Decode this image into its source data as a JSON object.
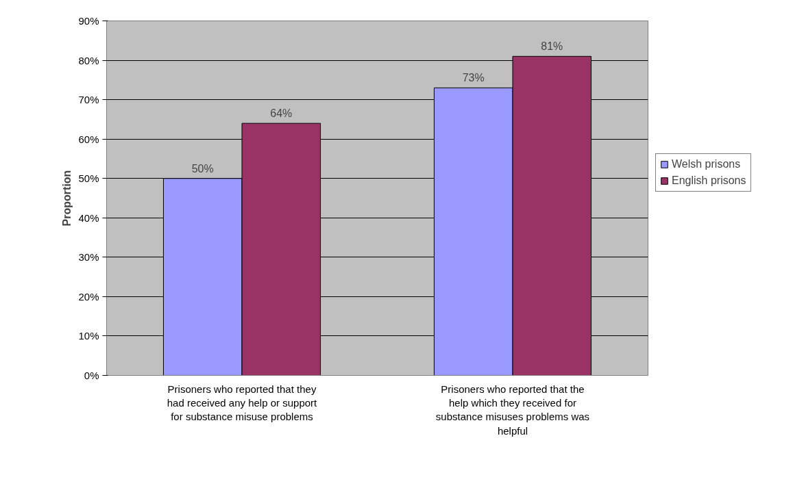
{
  "chart_data": {
    "type": "bar",
    "ylabel": "Proportion",
    "categories": [
      "Prisoners who reported that they had received any help or support for substance misuse problems",
      "Prisoners who reported that the help which they received for substance misuses problems was helpful"
    ],
    "series": [
      {
        "name": "Welsh prisons",
        "color": "#9999ff",
        "values": [
          50,
          73
        ],
        "value_labels": [
          "50%",
          "73%"
        ]
      },
      {
        "name": "English prisons",
        "color": "#993366",
        "values": [
          64,
          81
        ],
        "value_labels": [
          "64%",
          "81%"
        ]
      }
    ],
    "ylim": [
      0,
      90
    ],
    "yticks": [
      {
        "value": 0,
        "label": "0%"
      },
      {
        "value": 10,
        "label": "10%"
      },
      {
        "value": 20,
        "label": "20%"
      },
      {
        "value": 30,
        "label": "30%"
      },
      {
        "value": 40,
        "label": "40%"
      },
      {
        "value": 50,
        "label": "50%"
      },
      {
        "value": 60,
        "label": "60%"
      },
      {
        "value": 70,
        "label": "70%"
      },
      {
        "value": 80,
        "label": "80%"
      },
      {
        "value": 90,
        "label": "90%"
      }
    ],
    "grid": "y",
    "legend": "right"
  }
}
